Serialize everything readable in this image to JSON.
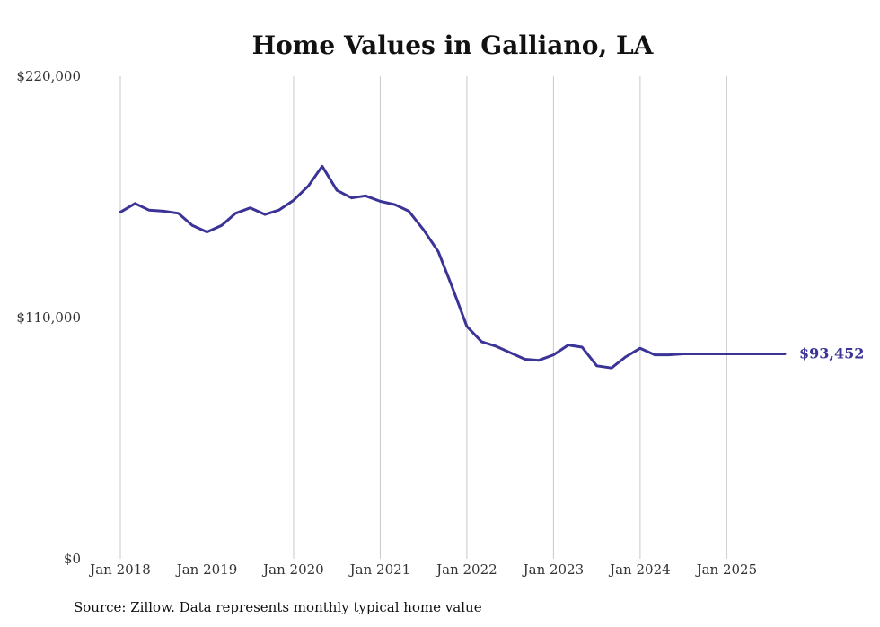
{
  "chart_data": {
    "type": "line",
    "title": "Home Values in Galliano, LA",
    "xlabel": "",
    "ylabel": "",
    "ylim": [
      0,
      220000
    ],
    "y_ticks": [
      {
        "value": 0,
        "label": "$0"
      },
      {
        "value": 110000,
        "label": "$110,000"
      },
      {
        "value": 220000,
        "label": "$220,000"
      }
    ],
    "x_ticks": [
      {
        "value": 2018.0,
        "label": "Jan 2018"
      },
      {
        "value": 2019.0,
        "label": "Jan 2019"
      },
      {
        "value": 2020.0,
        "label": "Jan 2020"
      },
      {
        "value": 2021.0,
        "label": "Jan 2021"
      },
      {
        "value": 2022.0,
        "label": "Jan 2022"
      },
      {
        "value": 2023.0,
        "label": "Jan 2023"
      },
      {
        "value": 2024.0,
        "label": "Jan 2024"
      },
      {
        "value": 2025.0,
        "label": "Jan 2025"
      }
    ],
    "xlim": [
      2018.0,
      2025.67
    ],
    "grid": "vertical",
    "line_color": "#3b3496",
    "end_label": "$93,452",
    "series": [
      {
        "name": "Typical home value",
        "x": [
          2018.0,
          2018.17,
          2018.33,
          2018.5,
          2018.67,
          2018.83,
          2019.0,
          2019.17,
          2019.33,
          2019.5,
          2019.67,
          2019.83,
          2020.0,
          2020.17,
          2020.33,
          2020.5,
          2020.67,
          2020.83,
          2021.0,
          2021.17,
          2021.33,
          2021.5,
          2021.67,
          2021.83,
          2022.0,
          2022.17,
          2022.33,
          2022.5,
          2022.67,
          2022.83,
          2023.0,
          2023.17,
          2023.33,
          2023.5,
          2023.67,
          2023.83,
          2024.0,
          2024.17,
          2024.33,
          2024.5,
          2024.67,
          2024.83,
          2025.0,
          2025.17,
          2025.33,
          2025.5,
          2025.67
        ],
        "values": [
          158000,
          162000,
          159000,
          158500,
          157500,
          152000,
          149000,
          152000,
          157500,
          160000,
          157000,
          159000,
          163500,
          170000,
          179000,
          168000,
          164500,
          165500,
          163000,
          161500,
          158500,
          150000,
          140000,
          124000,
          106000,
          99000,
          97000,
          94000,
          91000,
          90500,
          93000,
          97500,
          96500,
          88000,
          87000,
          92000,
          96000,
          93000,
          93000,
          93452,
          93452,
          93452,
          93452,
          93452,
          93452,
          93452,
          93452
        ]
      }
    ]
  },
  "footer": {
    "source": "Source: Zillow. Data represents monthly typical home value"
  }
}
